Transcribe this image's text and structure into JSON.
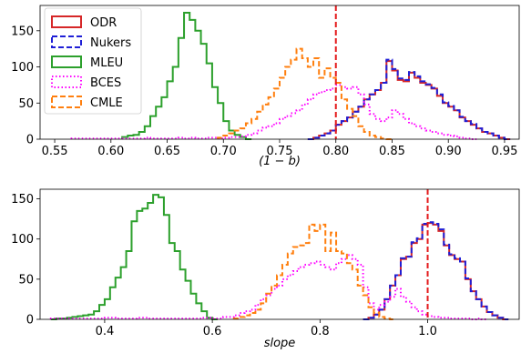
{
  "chart_data": [
    {
      "type": "histogram",
      "xlabel": "(1 − b)",
      "ylabel": "",
      "xlim": [
        0.537,
        0.963
      ],
      "ylim": [
        0,
        185
      ],
      "xticks": [
        0.55,
        0.6,
        0.65,
        0.7,
        0.75,
        0.8,
        0.85,
        0.9,
        0.95
      ],
      "xtick_labels": [
        "0.55",
        "0.60",
        "0.65",
        "0.70",
        "0.75",
        "0.80",
        "0.85",
        "0.90",
        "0.95"
      ],
      "yticks": [
        0,
        50,
        100,
        150
      ],
      "ytick_labels": [
        "0",
        "50",
        "100",
        "150"
      ],
      "reference_line": {
        "x": 0.8,
        "color": "#e41a1c",
        "style": "dashed"
      },
      "grid": false,
      "legend": {
        "placement": "top-left"
      },
      "series": [
        {
          "name": "ODR",
          "color": "#d62728",
          "style": "solid",
          "x": [
            0.775,
            0.78,
            0.785,
            0.79,
            0.795,
            0.8,
            0.805,
            0.81,
            0.815,
            0.82,
            0.825,
            0.83,
            0.835,
            0.84,
            0.845,
            0.85,
            0.855,
            0.86,
            0.865,
            0.87,
            0.875,
            0.88,
            0.885,
            0.89,
            0.895,
            0.9,
            0.905,
            0.91,
            0.915,
            0.92,
            0.925,
            0.93,
            0.935,
            0.94,
            0.945,
            0.95
          ],
          "y": [
            0,
            2,
            5,
            8,
            12,
            20,
            25,
            30,
            38,
            45,
            55,
            62,
            68,
            78,
            108,
            95,
            82,
            80,
            92,
            85,
            78,
            75,
            70,
            60,
            50,
            45,
            40,
            30,
            25,
            20,
            15,
            10,
            8,
            5,
            2,
            0
          ]
        },
        {
          "name": "Nukers",
          "color": "#1f1fd6",
          "style": "dashed",
          "x": [
            0.775,
            0.78,
            0.785,
            0.79,
            0.795,
            0.8,
            0.805,
            0.81,
            0.815,
            0.82,
            0.825,
            0.83,
            0.835,
            0.84,
            0.845,
            0.85,
            0.855,
            0.86,
            0.865,
            0.87,
            0.875,
            0.88,
            0.885,
            0.89,
            0.895,
            0.9,
            0.905,
            0.91,
            0.915,
            0.92,
            0.925,
            0.93,
            0.935,
            0.94,
            0.945,
            0.95
          ],
          "y": [
            0,
            2,
            5,
            8,
            12,
            20,
            25,
            30,
            38,
            45,
            55,
            62,
            68,
            78,
            110,
            97,
            84,
            82,
            93,
            87,
            80,
            76,
            71,
            62,
            51,
            46,
            40,
            31,
            25,
            21,
            15,
            10,
            8,
            5,
            2,
            0
          ]
        },
        {
          "name": "MLEU",
          "color": "#2ca02c",
          "style": "solid",
          "x": [
            0.61,
            0.615,
            0.62,
            0.625,
            0.63,
            0.635,
            0.64,
            0.645,
            0.65,
            0.655,
            0.66,
            0.665,
            0.67,
            0.675,
            0.68,
            0.685,
            0.69,
            0.695,
            0.7,
            0.705,
            0.71,
            0.715,
            0.72
          ],
          "y": [
            3,
            5,
            6,
            10,
            18,
            32,
            45,
            58,
            80,
            100,
            140,
            175,
            165,
            150,
            132,
            105,
            72,
            50,
            25,
            12,
            6,
            3,
            0
          ]
        },
        {
          "name": "BCES",
          "color": "#ff00ff",
          "style": "dotted",
          "x": [
            0.565,
            0.57,
            0.575,
            0.58,
            0.585,
            0.59,
            0.595,
            0.6,
            0.605,
            0.61,
            0.615,
            0.62,
            0.625,
            0.63,
            0.635,
            0.64,
            0.645,
            0.65,
            0.655,
            0.66,
            0.665,
            0.67,
            0.675,
            0.68,
            0.685,
            0.69,
            0.695,
            0.7,
            0.705,
            0.71,
            0.715,
            0.72,
            0.725,
            0.73,
            0.735,
            0.74,
            0.745,
            0.75,
            0.755,
            0.76,
            0.765,
            0.77,
            0.775,
            0.78,
            0.785,
            0.79,
            0.795,
            0.8,
            0.805,
            0.81,
            0.815,
            0.82,
            0.825,
            0.83,
            0.835,
            0.84,
            0.845,
            0.85,
            0.855,
            0.86,
            0.865,
            0.87,
            0.875,
            0.88,
            0.885,
            0.89,
            0.895,
            0.9,
            0.905,
            0.91,
            0.915,
            0.92
          ],
          "y": [
            1,
            1,
            1,
            1,
            1,
            1,
            1,
            1,
            1,
            1,
            1,
            1,
            1,
            2,
            1,
            1,
            1,
            1,
            1,
            2,
            1,
            2,
            1,
            1,
            2,
            2,
            1,
            2,
            3,
            3,
            4,
            6,
            8,
            12,
            16,
            18,
            22,
            28,
            32,
            36,
            40,
            48,
            55,
            62,
            65,
            68,
            70,
            75,
            72,
            70,
            72,
            62,
            48,
            35,
            28,
            25,
            30,
            40,
            35,
            28,
            22,
            18,
            15,
            12,
            10,
            8,
            6,
            5,
            4,
            2,
            1,
            0
          ]
        },
        {
          "name": "CMLE",
          "color": "#ff7f0e",
          "style": "dashed",
          "x": [
            0.695,
            0.7,
            0.705,
            0.71,
            0.715,
            0.72,
            0.725,
            0.73,
            0.735,
            0.74,
            0.745,
            0.75,
            0.755,
            0.76,
            0.765,
            0.77,
            0.775,
            0.78,
            0.785,
            0.79,
            0.795,
            0.8,
            0.805,
            0.81,
            0.815,
            0.82,
            0.825,
            0.83,
            0.835,
            0.84,
            0.845
          ],
          "y": [
            2,
            5,
            8,
            12,
            15,
            22,
            28,
            38,
            48,
            58,
            70,
            85,
            100,
            110,
            125,
            112,
            100,
            112,
            85,
            98,
            85,
            78,
            55,
            42,
            32,
            18,
            10,
            5,
            3,
            1,
            0
          ]
        }
      ]
    },
    {
      "type": "histogram",
      "xlabel": "slope",
      "ylabel": "",
      "xlim": [
        0.28,
        1.17
      ],
      "ylim": [
        0,
        162
      ],
      "xticks": [
        0.4,
        0.6,
        0.8,
        1.0
      ],
      "xtick_labels": [
        "0.4",
        "0.6",
        "0.8",
        "1.0"
      ],
      "yticks": [
        0,
        50,
        100,
        150
      ],
      "ytick_labels": [
        "0",
        "50",
        "100",
        "150"
      ],
      "reference_line": {
        "x": 1.0,
        "color": "#e41a1c",
        "style": "dashed"
      },
      "grid": false,
      "series": [
        {
          "name": "ODR",
          "color": "#d62728",
          "style": "solid",
          "x": [
            0.88,
            0.89,
            0.9,
            0.91,
            0.92,
            0.93,
            0.94,
            0.95,
            0.96,
            0.97,
            0.98,
            0.99,
            1.0,
            1.01,
            1.02,
            1.03,
            1.04,
            1.05,
            1.06,
            1.07,
            1.08,
            1.09,
            1.1,
            1.11,
            1.12,
            1.13,
            1.14
          ],
          "y": [
            0,
            2,
            6,
            12,
            25,
            42,
            55,
            75,
            78,
            95,
            100,
            118,
            120,
            118,
            110,
            92,
            80,
            75,
            72,
            50,
            35,
            25,
            16,
            9,
            5,
            2,
            0
          ]
        },
        {
          "name": "Nukers",
          "color": "#1f1fd6",
          "style": "dashed",
          "x": [
            0.88,
            0.89,
            0.9,
            0.91,
            0.92,
            0.93,
            0.94,
            0.95,
            0.96,
            0.97,
            0.98,
            0.99,
            1.0,
            1.01,
            1.02,
            1.03,
            1.04,
            1.05,
            1.06,
            1.07,
            1.08,
            1.09,
            1.1,
            1.11,
            1.12,
            1.13,
            1.14
          ],
          "y": [
            0,
            2,
            6,
            12,
            25,
            42,
            55,
            76,
            78,
            96,
            101,
            119,
            121,
            119,
            112,
            93,
            81,
            76,
            72,
            51,
            35,
            25,
            16,
            9,
            5,
            2,
            0
          ]
        },
        {
          "name": "MLEU",
          "color": "#2ca02c",
          "style": "solid",
          "x": [
            0.3,
            0.31,
            0.32,
            0.33,
            0.34,
            0.35,
            0.36,
            0.37,
            0.38,
            0.39,
            0.4,
            0.41,
            0.42,
            0.43,
            0.44,
            0.45,
            0.46,
            0.47,
            0.48,
            0.49,
            0.5,
            0.51,
            0.52,
            0.53,
            0.54,
            0.55,
            0.56,
            0.57,
            0.58,
            0.59,
            0.6
          ],
          "y": [
            0,
            1,
            1,
            2,
            3,
            4,
            5,
            6,
            10,
            18,
            25,
            40,
            52,
            65,
            85,
            122,
            135,
            138,
            145,
            155,
            152,
            130,
            95,
            85,
            62,
            48,
            32,
            20,
            10,
            2,
            0
          ]
        },
        {
          "name": "BCES",
          "color": "#ff00ff",
          "style": "dotted",
          "x": [
            0.3,
            0.32,
            0.34,
            0.36,
            0.38,
            0.4,
            0.42,
            0.44,
            0.46,
            0.48,
            0.5,
            0.52,
            0.54,
            0.56,
            0.58,
            0.6,
            0.62,
            0.64,
            0.65,
            0.66,
            0.67,
            0.68,
            0.69,
            0.7,
            0.71,
            0.72,
            0.73,
            0.74,
            0.75,
            0.76,
            0.77,
            0.78,
            0.79,
            0.8,
            0.81,
            0.82,
            0.83,
            0.84,
            0.85,
            0.86,
            0.87,
            0.88,
            0.89,
            0.9,
            0.91,
            0.92,
            0.93,
            0.94,
            0.95,
            0.96,
            0.97,
            0.98,
            0.99,
            1.0,
            1.01,
            1.02,
            1.03,
            1.04,
            1.05,
            1.06,
            1.07,
            1.08,
            1.09,
            1.1
          ],
          "y": [
            1,
            1,
            1,
            1,
            1,
            2,
            1,
            1,
            2,
            1,
            1,
            1,
            1,
            1,
            2,
            1,
            3,
            5,
            8,
            10,
            12,
            18,
            25,
            30,
            38,
            42,
            50,
            55,
            60,
            65,
            68,
            70,
            72,
            68,
            65,
            62,
            70,
            75,
            80,
            75,
            68,
            40,
            20,
            12,
            18,
            22,
            28,
            38,
            28,
            22,
            15,
            10,
            6,
            4,
            3,
            2,
            2,
            1,
            1,
            1,
            1,
            0,
            1,
            0
          ]
        },
        {
          "name": "CMLE",
          "color": "#ff7f0e",
          "style": "dashed",
          "x": [
            0.64,
            0.65,
            0.66,
            0.67,
            0.68,
            0.69,
            0.7,
            0.71,
            0.72,
            0.73,
            0.74,
            0.75,
            0.76,
            0.77,
            0.78,
            0.79,
            0.8,
            0.81,
            0.82,
            0.83,
            0.84,
            0.85,
            0.86,
            0.87,
            0.88,
            0.89,
            0.9,
            0.91,
            0.92,
            0.93
          ],
          "y": [
            1,
            3,
            5,
            8,
            12,
            20,
            32,
            42,
            55,
            68,
            82,
            90,
            92,
            95,
            118,
            110,
            118,
            85,
            108,
            85,
            82,
            70,
            62,
            42,
            30,
            15,
            8,
            3,
            1,
            0
          ]
        }
      ]
    }
  ]
}
